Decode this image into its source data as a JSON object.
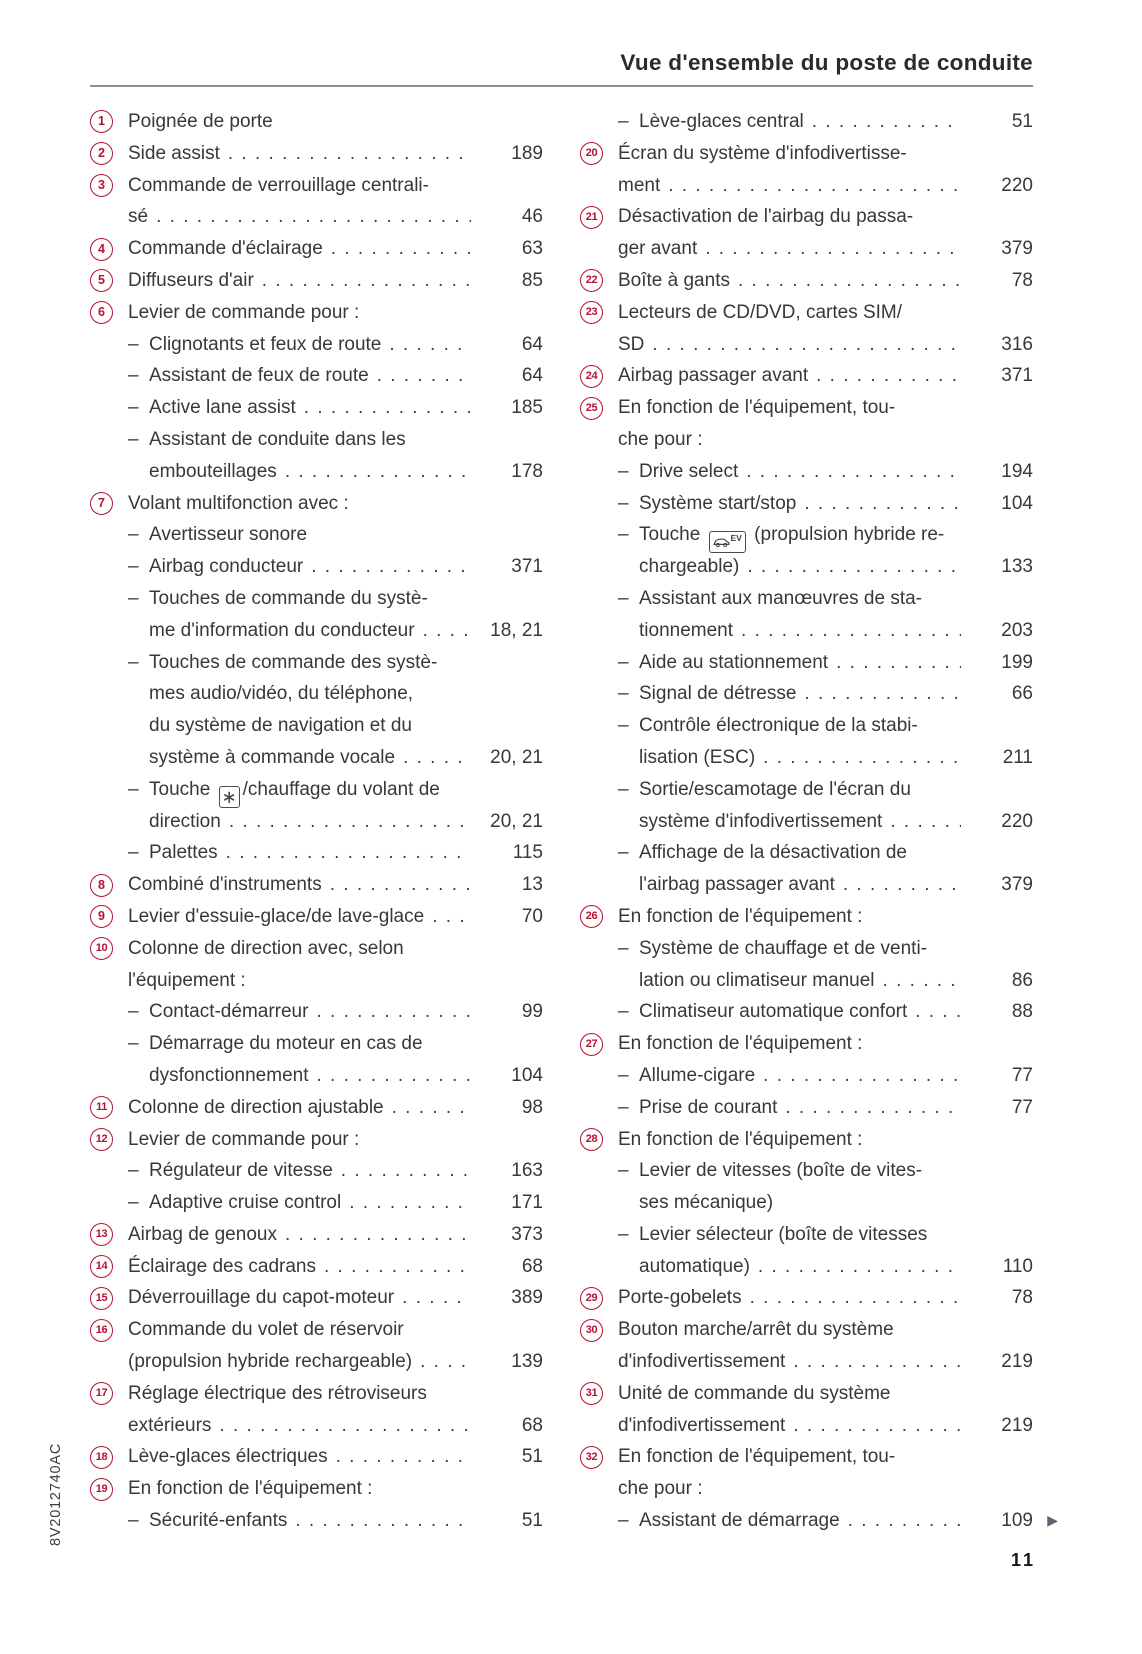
{
  "page": {
    "header": {
      "title": "Vue d'ensemble du poste de conduite"
    },
    "footer": {
      "page_number": "11",
      "doc_code": "8V2012740AC"
    },
    "glyphs": {
      "dash": "–",
      "continue_arrow": "▶"
    },
    "colors": {
      "accent_red": "#b5122d",
      "text": "#383838",
      "rule_gray": "#8f8f8f",
      "arrow_gray": "#5c6670"
    }
  },
  "icons": {
    "steering-heat": {
      "name": "steering-wheel-heat-icon",
      "glyph": "∗"
    },
    "ev": {
      "name": "ev-mode-icon",
      "label": "EV"
    }
  },
  "index": {
    "columns": [
      {
        "lines": [
          {
            "num": "1",
            "text": "Poignée de porte"
          },
          {
            "num": "2",
            "text": "Side assist",
            "dots": true,
            "page": "189"
          },
          {
            "num": "3",
            "text": "Commande de verrouillage centrali-"
          },
          {
            "cont": 1,
            "text": "sé",
            "dots": true,
            "page": "46"
          },
          {
            "num": "4",
            "text": "Commande d'éclairage",
            "dots": true,
            "page": "63"
          },
          {
            "num": "5",
            "text": "Diffuseurs d'air",
            "dots": true,
            "page": "85"
          },
          {
            "num": "6",
            "text": "Levier de commande pour :"
          },
          {
            "dash": true,
            "text": "Clignotants et feux de route",
            "dots": true,
            "page": "64"
          },
          {
            "dash": true,
            "text": "Assistant de feux de route",
            "dots": true,
            "page": "64"
          },
          {
            "dash": true,
            "text": "Active lane assist",
            "dots": true,
            "page": "185"
          },
          {
            "dash": true,
            "text": "Assistant de conduite dans les"
          },
          {
            "cont": 2,
            "text": "embouteillages",
            "dots": true,
            "page": "178"
          },
          {
            "num": "7",
            "text": "Volant multifonction avec :"
          },
          {
            "dash": true,
            "text": "Avertisseur sonore"
          },
          {
            "dash": true,
            "text": "Airbag conducteur",
            "dots": true,
            "page": "371"
          },
          {
            "dash": true,
            "text": "Touches de commande du systè-"
          },
          {
            "cont": 2,
            "text": "me d'information du conducteur",
            "dots": true,
            "page": "18, 21"
          },
          {
            "dash": true,
            "text": "Touches de commande des systè-"
          },
          {
            "cont": 2,
            "text": "mes audio/vidéo, du téléphone,"
          },
          {
            "cont": 2,
            "text": "du système de navigation et du"
          },
          {
            "cont": 2,
            "text": "système à commande vocale",
            "dots": true,
            "page": "20, 21"
          },
          {
            "dash": true,
            "text": "Touche ",
            "icon": "steering-heat",
            "text2": "/chauffage du volant de"
          },
          {
            "cont": 2,
            "text": "direction",
            "dots": true,
            "page": "20, 21"
          },
          {
            "dash": true,
            "text": "Palettes",
            "dots": true,
            "page": "115"
          },
          {
            "num": "8",
            "text": "Combiné d'instruments",
            "dots": true,
            "page": "13"
          },
          {
            "num": "9",
            "text": "Levier d'essuie-glace/de lave-glace",
            "dots": true,
            "page": "70"
          },
          {
            "num": "10",
            "text": "Colonne de direction avec, selon"
          },
          {
            "cont": 1,
            "text": "l'équipement :"
          },
          {
            "dash": true,
            "text": "Contact-démarreur",
            "dots": true,
            "page": "99"
          },
          {
            "dash": true,
            "text": "Démarrage du moteur en cas de"
          },
          {
            "cont": 2,
            "text": "dysfonctionnement",
            "dots": true,
            "page": "104"
          },
          {
            "num": "11",
            "text": "Colonne de direction ajustable",
            "dots": true,
            "page": "98"
          },
          {
            "num": "12",
            "text": "Levier de commande pour :"
          },
          {
            "dash": true,
            "text": "Régulateur de vitesse",
            "dots": true,
            "page": "163"
          },
          {
            "dash": true,
            "text": "Adaptive cruise control",
            "dots": true,
            "page": "171"
          },
          {
            "num": "13",
            "text": "Airbag de genoux",
            "dots": true,
            "page": "373"
          },
          {
            "num": "14",
            "text": "Éclairage des cadrans",
            "dots": true,
            "page": "68"
          },
          {
            "num": "15",
            "text": "Déverrouillage du capot-moteur",
            "dots": true,
            "page": "389"
          },
          {
            "num": "16",
            "text": "Commande du volet de réservoir"
          },
          {
            "cont": 1,
            "text": "(propulsion hybride rechargeable)",
            "dots": true,
            "page": "139"
          },
          {
            "num": "17",
            "text": "Réglage électrique des rétroviseurs"
          },
          {
            "cont": 1,
            "text": "extérieurs",
            "dots": true,
            "page": "68"
          },
          {
            "num": "18",
            "text": "Lève-glaces électriques",
            "dots": true,
            "page": "51"
          },
          {
            "num": "19",
            "text": "En fonction de l'équipement :"
          },
          {
            "dash": true,
            "text": "Sécurité-enfants",
            "dots": true,
            "page": "51"
          }
        ]
      },
      {
        "lines": [
          {
            "dash": true,
            "text": "Lève-glaces central",
            "dots": true,
            "page": "51"
          },
          {
            "num": "20",
            "text": "Écran du système d'infodivertisse-"
          },
          {
            "cont": 1,
            "text": "ment",
            "dots": true,
            "page": "220"
          },
          {
            "num": "21",
            "text": "Désactivation de l'airbag du passa-"
          },
          {
            "cont": 1,
            "text": "ger avant",
            "dots": true,
            "page": "379"
          },
          {
            "num": "22",
            "text": "Boîte à gants",
            "dots": true,
            "page": "78"
          },
          {
            "num": "23",
            "text": "Lecteurs de CD/DVD, cartes SIM/"
          },
          {
            "cont": 1,
            "text": "SD",
            "dots": true,
            "page": "316"
          },
          {
            "num": "24",
            "text": "Airbag passager avant",
            "dots": true,
            "page": "371"
          },
          {
            "num": "25",
            "text": "En fonction de l'équipement, tou-"
          },
          {
            "cont": 1,
            "text": "che pour :"
          },
          {
            "dash": true,
            "text": "Drive select",
            "dots": true,
            "page": "194"
          },
          {
            "dash": true,
            "text": "Système start/stop",
            "dots": true,
            "page": "104"
          },
          {
            "dash": true,
            "text": "Touche ",
            "icon": "ev",
            "text2": " (propulsion hybride re-"
          },
          {
            "cont": 2,
            "text": "chargeable)",
            "dots": true,
            "page": "133"
          },
          {
            "dash": true,
            "text": "Assistant aux manœuvres de sta-"
          },
          {
            "cont": 2,
            "text": "tionnement",
            "dots": true,
            "page": "203"
          },
          {
            "dash": true,
            "text": "Aide au stationnement",
            "dots": true,
            "page": "199"
          },
          {
            "dash": true,
            "text": "Signal de détresse",
            "dots": true,
            "page": "66"
          },
          {
            "dash": true,
            "text": "Contrôle électronique de la stabi-"
          },
          {
            "cont": 2,
            "text": "lisation (ESC)",
            "dots": true,
            "page": "211"
          },
          {
            "dash": true,
            "text": "Sortie/escamotage de l'écran du"
          },
          {
            "cont": 2,
            "text": "système d'infodivertissement",
            "dots": true,
            "page": "220"
          },
          {
            "dash": true,
            "text": "Affichage de la désactivation de"
          },
          {
            "cont": 2,
            "text": "l'airbag passager avant",
            "dots": true,
            "page": "379"
          },
          {
            "num": "26",
            "text": "En fonction de l'équipement :"
          },
          {
            "dash": true,
            "text": "Système de chauffage et de venti-"
          },
          {
            "cont": 2,
            "text": "lation ou climatiseur manuel",
            "dots": true,
            "page": "86"
          },
          {
            "dash": true,
            "text": "Climatiseur automatique confort",
            "dots": true,
            "page": "88"
          },
          {
            "num": "27",
            "text": "En fonction de l'équipement :"
          },
          {
            "dash": true,
            "text": "Allume-cigare",
            "dots": true,
            "page": "77"
          },
          {
            "dash": true,
            "text": "Prise de courant",
            "dots": true,
            "page": "77"
          },
          {
            "num": "28",
            "text": "En fonction de l'équipement :"
          },
          {
            "dash": true,
            "text": "Levier de vitesses (boîte de vites-"
          },
          {
            "cont": 2,
            "text": "ses mécanique)"
          },
          {
            "dash": true,
            "text": "Levier sélecteur (boîte de vitesses"
          },
          {
            "cont": 2,
            "text": "automatique)",
            "dots": true,
            "page": "110"
          },
          {
            "num": "29",
            "text": "Porte-gobelets",
            "dots": true,
            "page": "78"
          },
          {
            "num": "30",
            "text": "Bouton marche/arrêt du système"
          },
          {
            "cont": 1,
            "text": "d'infodivertissement",
            "dots": true,
            "page": "219"
          },
          {
            "num": "31",
            "text": "Unité de commande du système"
          },
          {
            "cont": 1,
            "text": "d'infodivertissement",
            "dots": true,
            "page": "219"
          },
          {
            "num": "32",
            "text": "En fonction de l'équipement, tou-"
          },
          {
            "cont": 1,
            "text": "che pour :"
          },
          {
            "dash": true,
            "text": "Assistant de démarrage",
            "dots": true,
            "page": "109",
            "arrow": true
          }
        ]
      }
    ]
  }
}
